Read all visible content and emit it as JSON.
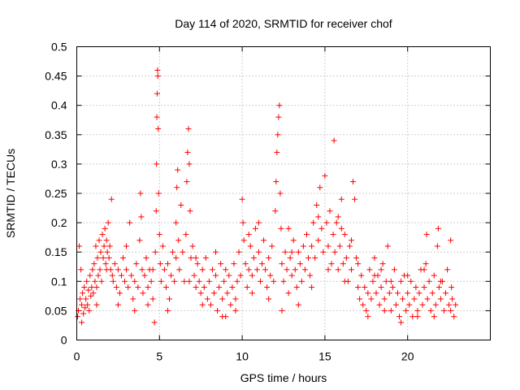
{
  "chart_data": {
    "type": "scatter",
    "title": "Day 114 of 2020, SRMTID for receiver chof",
    "xlabel": "GPS time / hours",
    "ylabel": "SRMTID / TECUs",
    "xlim": [
      0,
      25
    ],
    "ylim": [
      0,
      0.5
    ],
    "x_ticks": [
      0,
      5,
      10,
      15,
      20
    ],
    "x_tick_labels": [
      "0",
      "5",
      "10",
      "15",
      "20"
    ],
    "y_ticks": [
      0,
      0.05,
      0.1,
      0.15,
      0.2,
      0.25,
      0.3,
      0.35,
      0.4,
      0.45,
      0.5
    ],
    "y_tick_labels": [
      "0",
      "0.05",
      "0.1",
      "0.15",
      "0.2",
      "0.25",
      "0.3",
      "0.35",
      "0.4",
      "0.45",
      "0.5"
    ],
    "grid": true,
    "marker": "+",
    "color": "#ff0000",
    "series": [
      {
        "name": "SRMTID",
        "points": [
          [
            0.05,
            0.04
          ],
          [
            0.1,
            0.05
          ],
          [
            0.15,
            0.16
          ],
          [
            0.2,
            0.07
          ],
          [
            0.25,
            0.12
          ],
          [
            0.3,
            0.06
          ],
          [
            0.35,
            0.08
          ],
          [
            0.4,
            0.045
          ],
          [
            0.45,
            0.09
          ],
          [
            0.5,
            0.055
          ],
          [
            0.55,
            0.07
          ],
          [
            0.6,
            0.1
          ],
          [
            0.65,
            0.06
          ],
          [
            0.7,
            0.085
          ],
          [
            0.75,
            0.05
          ],
          [
            0.8,
            0.11
          ],
          [
            0.85,
            0.075
          ],
          [
            0.9,
            0.09
          ],
          [
            0.95,
            0.12
          ],
          [
            1.0,
            0.08
          ],
          [
            1.05,
            0.13
          ],
          [
            1.1,
            0.1
          ],
          [
            1.15,
            0.16
          ],
          [
            1.2,
            0.09
          ],
          [
            1.25,
            0.14
          ],
          [
            1.3,
            0.11
          ],
          [
            1.35,
            0.17
          ],
          [
            1.4,
            0.12
          ],
          [
            1.45,
            0.15
          ],
          [
            1.5,
            0.1
          ],
          [
            1.55,
            0.18
          ],
          [
            1.6,
            0.14
          ],
          [
            1.65,
            0.16
          ],
          [
            1.7,
            0.19
          ],
          [
            1.75,
            0.13
          ],
          [
            1.8,
            0.17
          ],
          [
            1.85,
            0.15
          ],
          [
            1.9,
            0.2
          ],
          [
            1.95,
            0.14
          ],
          [
            2.0,
            0.16
          ],
          [
            2.05,
            0.12
          ],
          [
            2.1,
            0.24
          ],
          [
            2.15,
            0.11
          ],
          [
            2.2,
            0.1
          ],
          [
            2.3,
            0.13
          ],
          [
            2.4,
            0.09
          ],
          [
            2.5,
            0.12
          ],
          [
            2.6,
            0.08
          ],
          [
            2.7,
            0.11
          ],
          [
            2.8,
            0.14
          ],
          [
            2.9,
            0.1
          ],
          [
            3.0,
            0.12
          ],
          [
            3.1,
            0.09
          ],
          [
            3.2,
            0.2
          ],
          [
            3.3,
            0.11
          ],
          [
            3.4,
            0.07
          ],
          [
            3.5,
            0.1
          ],
          [
            3.6,
            0.13
          ],
          [
            3.7,
            0.09
          ],
          [
            3.8,
            0.17
          ],
          [
            3.85,
            0.25
          ],
          [
            3.9,
            0.21
          ],
          [
            3.95,
            0.12
          ],
          [
            4.0,
            0.08
          ],
          [
            4.1,
            0.11
          ],
          [
            4.2,
            0.14
          ],
          [
            4.3,
            0.09
          ],
          [
            4.4,
            0.12
          ],
          [
            4.5,
            0.1
          ],
          [
            4.6,
            0.07
          ],
          [
            4.7,
            0.03
          ],
          [
            4.75,
            0.15
          ],
          [
            4.8,
            0.22
          ],
          [
            4.82,
            0.3
          ],
          [
            4.84,
            0.38
          ],
          [
            4.86,
            0.42
          ],
          [
            4.88,
            0.46
          ],
          [
            4.9,
            0.45
          ],
          [
            4.92,
            0.36
          ],
          [
            4.95,
            0.25
          ],
          [
            5.0,
            0.18
          ],
          [
            5.05,
            0.13
          ],
          [
            5.1,
            0.1
          ],
          [
            5.2,
            0.16
          ],
          [
            5.3,
            0.12
          ],
          [
            5.4,
            0.09
          ],
          [
            5.5,
            0.13
          ],
          [
            5.6,
            0.07
          ],
          [
            5.7,
            0.11
          ],
          [
            5.8,
            0.15
          ],
          [
            5.9,
            0.1
          ],
          [
            6.0,
            0.2
          ],
          [
            6.05,
            0.26
          ],
          [
            6.1,
            0.29
          ],
          [
            6.15,
            0.17
          ],
          [
            6.2,
            0.12
          ],
          [
            6.3,
            0.23
          ],
          [
            6.4,
            0.15
          ],
          [
            6.5,
            0.1
          ],
          [
            6.6,
            0.18
          ],
          [
            6.65,
            0.27
          ],
          [
            6.7,
            0.32
          ],
          [
            6.75,
            0.36
          ],
          [
            6.8,
            0.3
          ],
          [
            6.85,
            0.22
          ],
          [
            6.9,
            0.14
          ],
          [
            7.0,
            0.16
          ],
          [
            7.1,
            0.11
          ],
          [
            7.2,
            0.09
          ],
          [
            7.3,
            0.13
          ],
          [
            7.4,
            0.1
          ],
          [
            7.5,
            0.08
          ],
          [
            7.6,
            0.12
          ],
          [
            7.7,
            0.09
          ],
          [
            7.8,
            0.14
          ],
          [
            7.9,
            0.07
          ],
          [
            8.0,
            0.1
          ],
          [
            8.1,
            0.06
          ],
          [
            8.2,
            0.12
          ],
          [
            8.3,
            0.08
          ],
          [
            8.4,
            0.11
          ],
          [
            8.5,
            0.05
          ],
          [
            8.6,
            0.09
          ],
          [
            8.7,
            0.13
          ],
          [
            8.8,
            0.07
          ],
          [
            8.9,
            0.1
          ],
          [
            9.0,
            0.04
          ],
          [
            9.1,
            0.08
          ],
          [
            9.2,
            0.11
          ],
          [
            9.3,
            0.06
          ],
          [
            9.4,
            0.09
          ],
          [
            9.5,
            0.13
          ],
          [
            9.6,
            0.07
          ],
          [
            9.7,
            0.1
          ],
          [
            9.8,
            0.15
          ],
          [
            9.9,
            0.11
          ],
          [
            10.0,
            0.24
          ],
          [
            10.05,
            0.2
          ],
          [
            10.1,
            0.17
          ],
          [
            10.2,
            0.13
          ],
          [
            10.3,
            0.09
          ],
          [
            10.4,
            0.12
          ],
          [
            10.5,
            0.16
          ],
          [
            10.6,
            0.11
          ],
          [
            10.7,
            0.14
          ],
          [
            10.8,
            0.19
          ],
          [
            10.9,
            0.12
          ],
          [
            11.0,
            0.15
          ],
          [
            11.1,
            0.1
          ],
          [
            11.2,
            0.13
          ],
          [
            11.3,
            0.17
          ],
          [
            11.4,
            0.12
          ],
          [
            11.5,
            0.09
          ],
          [
            11.6,
            0.14
          ],
          [
            11.7,
            0.11
          ],
          [
            11.8,
            0.16
          ],
          [
            11.9,
            0.1
          ],
          [
            12.0,
            0.22
          ],
          [
            12.05,
            0.27
          ],
          [
            12.1,
            0.32
          ],
          [
            12.15,
            0.35
          ],
          [
            12.2,
            0.38
          ],
          [
            12.25,
            0.4
          ],
          [
            12.3,
            0.25
          ],
          [
            12.35,
            0.19
          ],
          [
            12.4,
            0.13
          ],
          [
            12.5,
            0.1
          ],
          [
            12.6,
            0.15
          ],
          [
            12.7,
            0.12
          ],
          [
            12.8,
            0.08
          ],
          [
            12.9,
            0.14
          ],
          [
            13.0,
            0.11
          ],
          [
            13.1,
            0.17
          ],
          [
            13.2,
            0.12
          ],
          [
            13.3,
            0.09
          ],
          [
            13.4,
            0.15
          ],
          [
            13.5,
            0.13
          ],
          [
            13.6,
            0.1
          ],
          [
            13.7,
            0.16
          ],
          [
            13.8,
            0.12
          ],
          [
            13.9,
            0.18
          ],
          [
            14.0,
            0.14
          ],
          [
            14.1,
            0.11
          ],
          [
            14.2,
            0.16
          ],
          [
            14.3,
            0.2
          ],
          [
            14.4,
            0.14
          ],
          [
            14.5,
            0.23
          ],
          [
            14.6,
            0.17
          ],
          [
            14.7,
            0.26
          ],
          [
            14.8,
            0.19
          ],
          [
            14.9,
            0.15
          ],
          [
            15.0,
            0.28
          ],
          [
            15.1,
            0.2
          ],
          [
            15.2,
            0.16
          ],
          [
            15.3,
            0.22
          ],
          [
            15.4,
            0.13
          ],
          [
            15.5,
            0.18
          ],
          [
            15.55,
            0.34
          ],
          [
            15.6,
            0.15
          ],
          [
            15.7,
            0.2
          ],
          [
            15.8,
            0.12
          ],
          [
            15.9,
            0.16
          ],
          [
            16.0,
            0.24
          ],
          [
            16.1,
            0.13
          ],
          [
            16.2,
            0.18
          ],
          [
            16.3,
            0.14
          ],
          [
            16.4,
            0.1
          ],
          [
            16.5,
            0.16
          ],
          [
            16.6,
            0.12
          ],
          [
            16.7,
            0.27
          ],
          [
            16.8,
            0.24
          ],
          [
            16.9,
            0.14
          ],
          [
            17.0,
            0.09
          ],
          [
            17.1,
            0.07
          ],
          [
            17.2,
            0.11
          ],
          [
            17.3,
            0.06
          ],
          [
            17.4,
            0.09
          ],
          [
            17.5,
            0.05
          ],
          [
            17.6,
            0.08
          ],
          [
            17.7,
            0.12
          ],
          [
            17.8,
            0.07
          ],
          [
            17.9,
            0.1
          ],
          [
            18.0,
            0.14
          ],
          [
            18.1,
            0.08
          ],
          [
            18.2,
            0.11
          ],
          [
            18.3,
            0.06
          ],
          [
            18.4,
            0.09
          ],
          [
            18.5,
            0.13
          ],
          [
            18.6,
            0.07
          ],
          [
            18.7,
            0.1
          ],
          [
            18.8,
            0.16
          ],
          [
            18.9,
            0.08
          ],
          [
            19.0,
            0.05
          ],
          [
            19.1,
            0.09
          ],
          [
            19.2,
            0.12
          ],
          [
            19.3,
            0.06
          ],
          [
            19.4,
            0.08
          ],
          [
            19.5,
            0.04
          ],
          [
            19.6,
            0.1
          ],
          [
            19.7,
            0.07
          ],
          [
            19.8,
            0.11
          ],
          [
            19.9,
            0.05
          ],
          [
            20.0,
            0.08
          ],
          [
            20.1,
            0.06
          ],
          [
            20.2,
            0.1
          ],
          [
            20.3,
            0.04
          ],
          [
            20.4,
            0.07
          ],
          [
            20.5,
            0.09
          ],
          [
            20.6,
            0.05
          ],
          [
            20.7,
            0.08
          ],
          [
            20.8,
            0.12
          ],
          [
            20.9,
            0.06
          ],
          [
            21.0,
            0.09
          ],
          [
            21.1,
            0.13
          ],
          [
            21.15,
            0.18
          ],
          [
            21.2,
            0.07
          ],
          [
            21.3,
            0.1
          ],
          [
            21.4,
            0.05
          ],
          [
            21.5,
            0.08
          ],
          [
            21.6,
            0.11
          ],
          [
            21.7,
            0.06
          ],
          [
            21.8,
            0.16
          ],
          [
            21.85,
            0.19
          ],
          [
            21.9,
            0.09
          ],
          [
            22.0,
            0.07
          ],
          [
            22.1,
            0.1
          ],
          [
            22.2,
            0.05
          ],
          [
            22.3,
            0.08
          ],
          [
            22.4,
            0.12
          ],
          [
            22.5,
            0.06
          ],
          [
            22.6,
            0.17
          ],
          [
            22.65,
            0.09
          ],
          [
            22.7,
            0.07
          ],
          [
            22.8,
            0.04
          ],
          [
            22.9,
            0.06
          ],
          [
            0.3,
            0.03
          ],
          [
            1.2,
            0.06
          ],
          [
            2.5,
            0.06
          ],
          [
            3.5,
            0.05
          ],
          [
            4.3,
            0.06
          ],
          [
            5.5,
            0.05
          ],
          [
            6.8,
            0.1
          ],
          [
            7.6,
            0.06
          ],
          [
            8.8,
            0.04
          ],
          [
            9.6,
            0.05
          ],
          [
            10.6,
            0.08
          ],
          [
            11.6,
            0.07
          ],
          [
            12.4,
            0.05
          ],
          [
            13.4,
            0.06
          ],
          [
            14.2,
            0.09
          ],
          [
            15.2,
            0.12
          ],
          [
            16.2,
            0.1
          ],
          [
            17.6,
            0.04
          ],
          [
            18.6,
            0.05
          ],
          [
            19.6,
            0.03
          ],
          [
            20.6,
            0.04
          ],
          [
            21.6,
            0.04
          ],
          [
            22.6,
            0.05
          ],
          [
            3.0,
            0.16
          ],
          [
            6.0,
            0.14
          ],
          [
            9.0,
            0.12
          ],
          [
            11.0,
            0.2
          ],
          [
            13.0,
            0.15
          ],
          [
            14.6,
            0.21
          ],
          [
            16.0,
            0.19
          ],
          [
            17.0,
            0.13
          ],
          [
            18.0,
            0.11
          ],
          [
            19.0,
            0.1
          ],
          [
            20.0,
            0.11
          ],
          [
            21.0,
            0.12
          ],
          [
            22.0,
            0.1
          ],
          [
            1.8,
            0.12
          ],
          [
            4.6,
            0.12
          ],
          [
            7.2,
            0.14
          ],
          [
            8.4,
            0.15
          ],
          [
            10.4,
            0.18
          ],
          [
            12.8,
            0.19
          ],
          [
            15.8,
            0.21
          ],
          [
            16.6,
            0.17
          ],
          [
            18.4,
            0.12
          ]
        ]
      }
    ]
  }
}
